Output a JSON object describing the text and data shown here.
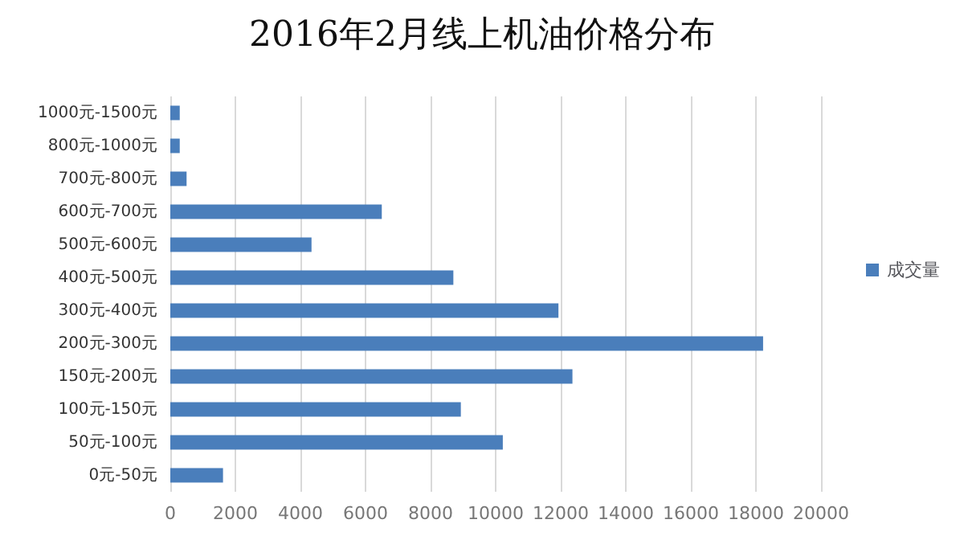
{
  "chart_data": {
    "type": "bar",
    "orientation": "horizontal",
    "title": "2016年2月线上机油价格分布",
    "categories": [
      "1000元-1500元",
      "800元-1000元",
      "700元-800元",
      "600元-700元",
      "500元-600元",
      "400元-500元",
      "300元-400元",
      "200元-300元",
      "150元-200元",
      "100元-150元",
      "50元-100元",
      "0元-50元"
    ],
    "series": [
      {
        "name": "成交量",
        "color": "#4a7ebb",
        "values": [
          290,
          290,
          500,
          6500,
          4340,
          8700,
          11930,
          18220,
          12360,
          8930,
          10220,
          1620
        ]
      }
    ],
    "xlim": [
      0,
      20000
    ],
    "xticks": [
      0,
      2000,
      4000,
      6000,
      8000,
      10000,
      12000,
      14000,
      16000,
      18000,
      20000
    ],
    "grid": "x",
    "legend": "right"
  }
}
